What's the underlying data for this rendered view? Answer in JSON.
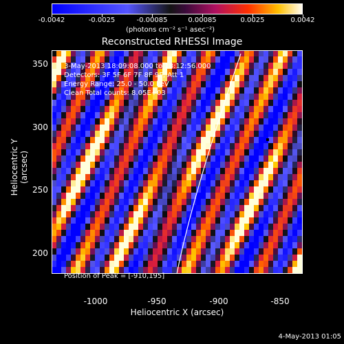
{
  "colorbar": {
    "ticks": [
      "-0.0042",
      "-0.0025",
      "-0.00085",
      "0.00085",
      "0.0025",
      "0.0042"
    ],
    "units": "(photons cm⁻² s⁻¹ asec⁻²)"
  },
  "image": {
    "title": "Reconstructed RHESSI Image",
    "info_lines": [
      "3-May-2013 18:09:08.000 to 18:12:56.000",
      "Detectors: 3F 5F 6F 7F 8F 9F, Att 1",
      "Energy Range: 25.0 - 50.0 keV",
      "Clean     Total counts: 8.05E+03"
    ],
    "peak_label": "Position of Peak = [-910,195]",
    "xlabel": "Heliocentric X (arcsec)",
    "ylabel": "Heliocentric Y (arcsec)",
    "x_ticks": [
      "-1000",
      "-950",
      "-900",
      "-850"
    ],
    "y_ticks": [
      "200",
      "250",
      "300",
      "350"
    ]
  },
  "footer": {
    "timestamp": "4-May-2013 01:05"
  }
}
